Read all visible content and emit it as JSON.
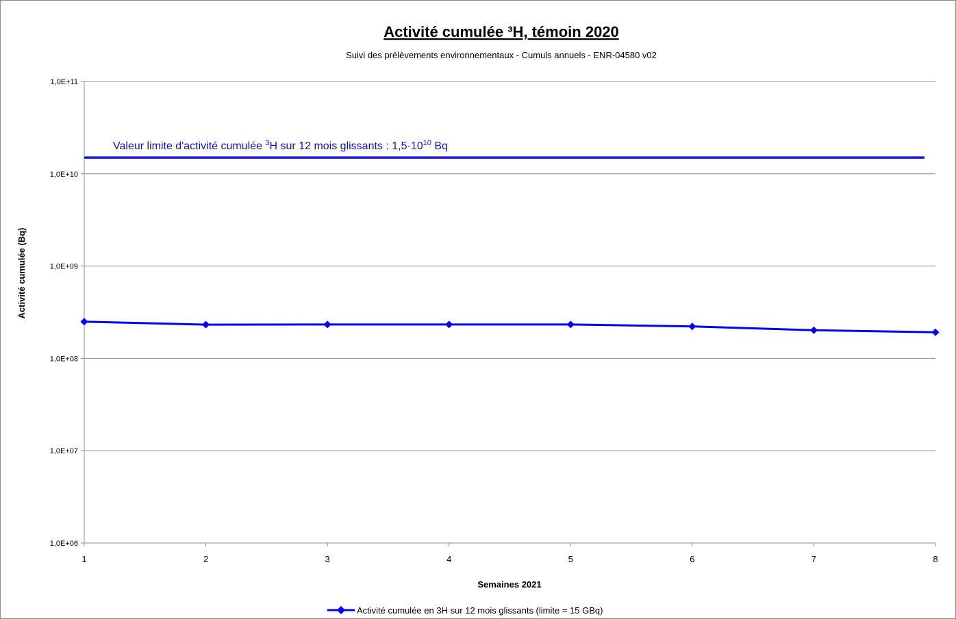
{
  "chart_data": {
    "type": "line",
    "title": "Activité cumulée ³H, témoin 2020",
    "subtitle": "Suivi des prélèvements environnementaux - Cumuls annuels - ENR-04580 v02",
    "xlabel": "Semaines 2021",
    "ylabel": "Activité cumulée (Bq)",
    "y_scale": "log",
    "ylim": [
      1000000,
      100000000000
    ],
    "y_tick_values": [
      1000000,
      10000000,
      100000000,
      1000000000,
      10000000000,
      100000000000
    ],
    "y_tick_labels": [
      "1,0E+06",
      "1,0E+07",
      "1,0E+08",
      "1,0E+09",
      "1,0E+10",
      "1,0E+11"
    ],
    "x": [
      1,
      2,
      3,
      4,
      5,
      6,
      7,
      8
    ],
    "xlim": [
      1,
      8
    ],
    "x_tick_labels": [
      "1",
      "2",
      "3",
      "4",
      "5",
      "6",
      "7",
      "8"
    ],
    "grid": "horizontal",
    "legend_position": "bottom",
    "series": [
      {
        "name": "Activité cumulée en 3H sur 12 mois glissants (limite = 15 GBq)",
        "color": "#0000ff",
        "marker": "diamond",
        "values": [
          250000000,
          232000000,
          233000000,
          233000000,
          233000000,
          222000000,
          202000000,
          192000000
        ]
      }
    ],
    "reference_line": {
      "value": 15000000000,
      "color": "#1a1ad8",
      "label": {
        "prefix": "Valeur limite d'activité cumulée ",
        "iso_mass": "3",
        "middle": "H sur 12 mois glissants : 1,5·10",
        "exponent": "10",
        "suffix": " Bq"
      }
    }
  },
  "colors": {
    "series": "#0000ff",
    "reference": "#1a1ad8",
    "grid": "#8c8c8c",
    "axis": "#8c8c8c"
  }
}
